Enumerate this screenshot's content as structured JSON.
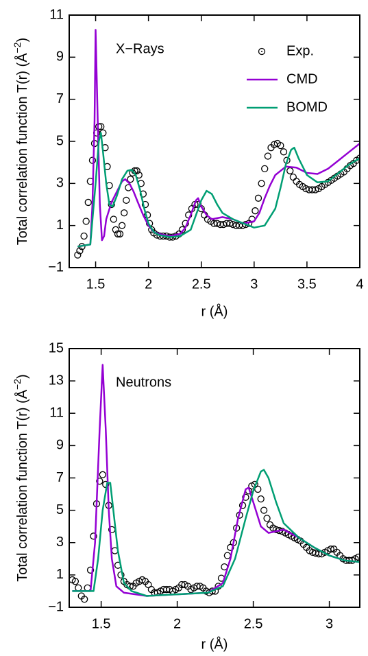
{
  "chart_data": [
    {
      "type": "scatter-line",
      "annotation": "X−Rays",
      "xlabel": "r (Å)",
      "ylabel": "Total correlation function T(r) (Å",
      "ylabel_sup": "−2",
      "ylabel_end": ")",
      "xlim": [
        1.25,
        4
      ],
      "xticks": [
        1.5,
        2,
        2.5,
        3,
        3.5,
        4
      ],
      "ylim": [
        -1,
        11
      ],
      "yticks": [
        {
          "value": -1,
          "label": "−1"
        },
        1,
        3,
        5,
        7,
        9,
        11
      ],
      "legend": "top-right",
      "series": [
        {
          "name": "Exp.",
          "color": "#000000",
          "style": "markers",
          "x": [
            1.33,
            1.35,
            1.37,
            1.39,
            1.41,
            1.43,
            1.45,
            1.47,
            1.49,
            1.51,
            1.53,
            1.55,
            1.57,
            1.59,
            1.61,
            1.63,
            1.65,
            1.67,
            1.69,
            1.71,
            1.73,
            1.75,
            1.77,
            1.79,
            1.81,
            1.83,
            1.85,
            1.87,
            1.89,
            1.91,
            1.93,
            1.95,
            1.97,
            1.99,
            2.01,
            2.03,
            2.05,
            2.08,
            2.11,
            2.14,
            2.17,
            2.2,
            2.23,
            2.26,
            2.29,
            2.32,
            2.35,
            2.38,
            2.41,
            2.44,
            2.47,
            2.5,
            2.53,
            2.56,
            2.59,
            2.62,
            2.65,
            2.68,
            2.71,
            2.74,
            2.77,
            2.8,
            2.83,
            2.86,
            2.89,
            2.92,
            2.95,
            2.98,
            3.01,
            3.04,
            3.07,
            3.1,
            3.13,
            3.16,
            3.19,
            3.22,
            3.25,
            3.28,
            3.31,
            3.34,
            3.37,
            3.4,
            3.43,
            3.46,
            3.49,
            3.52,
            3.55,
            3.58,
            3.61,
            3.64,
            3.67,
            3.7,
            3.73,
            3.76,
            3.79,
            3.82,
            3.85,
            3.88,
            3.91,
            3.94,
            3.97,
            4.0
          ],
          "values": [
            -0.4,
            -0.2,
            0.0,
            0.5,
            1.2,
            2.1,
            3.1,
            4.1,
            4.9,
            5.4,
            5.7,
            5.7,
            5.4,
            4.7,
            3.8,
            2.9,
            2.0,
            1.3,
            0.8,
            0.6,
            0.6,
            1.0,
            1.6,
            2.2,
            2.8,
            3.2,
            3.5,
            3.6,
            3.6,
            3.4,
            3.0,
            2.5,
            2.0,
            1.5,
            1.1,
            0.8,
            0.65,
            0.55,
            0.5,
            0.5,
            0.5,
            0.45,
            0.45,
            0.5,
            0.6,
            0.8,
            1.1,
            1.5,
            1.8,
            2.0,
            2.0,
            1.8,
            1.5,
            1.3,
            1.2,
            1.1,
            1.1,
            1.05,
            1.05,
            1.1,
            1.1,
            1.05,
            1.0,
            1.0,
            1.0,
            1.05,
            1.1,
            1.3,
            1.7,
            2.3,
            3.0,
            3.7,
            4.3,
            4.7,
            4.85,
            4.9,
            4.8,
            4.5,
            4.1,
            3.6,
            3.3,
            3.1,
            2.95,
            2.85,
            2.75,
            2.7,
            2.7,
            2.7,
            2.75,
            2.85,
            2.95,
            3.05,
            3.15,
            3.25,
            3.35,
            3.45,
            3.55,
            3.7,
            3.85,
            3.95,
            4.1,
            4.2
          ]
        },
        {
          "name": "CMD",
          "color": "#9400d3",
          "style": "line",
          "x": [
            1.33,
            1.45,
            1.47,
            1.49,
            1.5,
            1.52,
            1.54,
            1.56,
            1.58,
            1.6,
            1.65,
            1.7,
            1.75,
            1.78,
            1.82,
            1.86,
            1.9,
            1.95,
            2.0,
            2.05,
            2.1,
            2.2,
            2.3,
            2.35,
            2.4,
            2.45,
            2.47,
            2.5,
            2.55,
            2.6,
            2.7,
            2.8,
            2.9,
            3.0,
            3.05,
            3.1,
            3.15,
            3.2,
            3.3,
            3.4,
            3.5,
            3.6,
            3.7,
            3.8,
            3.9,
            4.0
          ],
          "values": [
            0.0,
            0.1,
            2,
            6,
            10.3,
            6,
            2,
            0.3,
            0.5,
            1.3,
            2.1,
            2.6,
            3.1,
            3.2,
            3.0,
            2.6,
            2.1,
            1.5,
            1.0,
            0.7,
            0.6,
            0.5,
            0.6,
            0.9,
            1.5,
            2.2,
            2.3,
            1.9,
            1.5,
            1.3,
            1.4,
            1.3,
            1.1,
            1.2,
            1.6,
            2.3,
            2.9,
            3.4,
            3.8,
            3.75,
            3.5,
            3.45,
            3.7,
            4.1,
            4.5,
            4.9
          ]
        },
        {
          "name": "BOMD",
          "color": "#009e73",
          "style": "line",
          "x": [
            1.33,
            1.45,
            1.5,
            1.53,
            1.55,
            1.57,
            1.6,
            1.63,
            1.66,
            1.7,
            1.75,
            1.8,
            1.84,
            1.88,
            1.92,
            1.96,
            2.0,
            2.05,
            2.1,
            2.2,
            2.3,
            2.4,
            2.45,
            2.5,
            2.55,
            2.6,
            2.65,
            2.7,
            2.8,
            2.9,
            3.0,
            3.1,
            3.2,
            3.25,
            3.3,
            3.35,
            3.38,
            3.42,
            3.5,
            3.6,
            3.7,
            3.8,
            3.9,
            4.0
          ],
          "values": [
            0.0,
            0.1,
            3,
            5.0,
            5.4,
            4.5,
            3.0,
            2.0,
            1.9,
            2.4,
            3.2,
            3.6,
            3.65,
            3.4,
            2.7,
            1.8,
            1.1,
            0.7,
            0.55,
            0.45,
            0.5,
            0.8,
            1.5,
            2.2,
            2.65,
            2.5,
            2.0,
            1.6,
            1.3,
            1.1,
            0.9,
            1.0,
            1.8,
            2.8,
            3.9,
            4.6,
            4.7,
            4.2,
            3.4,
            3.05,
            3.1,
            3.5,
            3.9,
            4.2
          ]
        }
      ]
    },
    {
      "type": "scatter-line",
      "annotation": "Neutrons",
      "xlabel": "r (Å)",
      "ylabel": "Total correlation function T(r) (Å",
      "ylabel_sup": "−2",
      "ylabel_end": ")",
      "xlim": [
        1.29,
        3.2
      ],
      "xticks": [
        1.5,
        2,
        2.5,
        3
      ],
      "ylim": [
        -1,
        15
      ],
      "yticks": [
        {
          "value": -1,
          "label": "−1"
        },
        1,
        3,
        5,
        7,
        9,
        11,
        13,
        15
      ],
      "series": [
        {
          "color": "#000000",
          "style": "markers",
          "x": [
            1.31,
            1.33,
            1.35,
            1.37,
            1.39,
            1.41,
            1.43,
            1.45,
            1.47,
            1.49,
            1.51,
            1.53,
            1.55,
            1.57,
            1.59,
            1.61,
            1.63,
            1.65,
            1.67,
            1.69,
            1.71,
            1.73,
            1.75,
            1.77,
            1.79,
            1.81,
            1.83,
            1.85,
            1.87,
            1.89,
            1.91,
            1.93,
            1.95,
            1.97,
            1.99,
            2.01,
            2.03,
            2.05,
            2.07,
            2.09,
            2.11,
            2.13,
            2.15,
            2.17,
            2.19,
            2.21,
            2.23,
            2.25,
            2.27,
            2.29,
            2.31,
            2.33,
            2.35,
            2.37,
            2.39,
            2.41,
            2.43,
            2.45,
            2.47,
            2.49,
            2.51,
            2.53,
            2.55,
            2.57,
            2.59,
            2.61,
            2.63,
            2.65,
            2.67,
            2.69,
            2.71,
            2.73,
            2.75,
            2.77,
            2.79,
            2.81,
            2.83,
            2.85,
            2.87,
            2.89,
            2.91,
            2.93,
            2.95,
            2.97,
            2.99,
            3.01,
            3.03,
            3.05,
            3.07,
            3.09,
            3.11,
            3.13,
            3.15,
            3.17,
            3.19
          ],
          "values": [
            0.7,
            0.6,
            0.2,
            -0.3,
            -0.5,
            0.2,
            1.3,
            3.4,
            5.4,
            6.8,
            7.2,
            6.6,
            5.3,
            3.8,
            2.5,
            1.6,
            1.0,
            0.6,
            0.4,
            0.3,
            0.3,
            0.5,
            0.6,
            0.7,
            0.6,
            0.4,
            0.1,
            -0.1,
            -0.1,
            0.0,
            0.1,
            0.1,
            0.1,
            0.0,
            0.1,
            0.2,
            0.4,
            0.4,
            0.3,
            0.1,
            0.2,
            0.3,
            0.3,
            0.2,
            0.0,
            -0.1,
            0.0,
            0.0,
            0.3,
            0.8,
            1.5,
            2.2,
            2.7,
            3.0,
            3.9,
            4.7,
            5.3,
            5.8,
            6.2,
            6.5,
            6.6,
            6.3,
            5.7,
            5.0,
            4.5,
            4.1,
            3.9,
            3.8,
            3.75,
            3.7,
            3.6,
            3.5,
            3.4,
            3.3,
            3.2,
            3.1,
            2.9,
            2.7,
            2.5,
            2.4,
            2.35,
            2.3,
            2.3,
            2.4,
            2.5,
            2.6,
            2.6,
            2.4,
            2.2,
            2.0,
            1.9,
            1.9,
            1.9,
            2.0,
            2.1
          ]
        },
        {
          "color": "#9400d3",
          "style": "line",
          "x": [
            1.31,
            1.43,
            1.46,
            1.49,
            1.51,
            1.53,
            1.55,
            1.57,
            1.6,
            1.65,
            1.8,
            2.0,
            2.2,
            2.3,
            2.35,
            2.4,
            2.45,
            2.47,
            2.5,
            2.55,
            2.6,
            2.7,
            2.8,
            2.9,
            3.0,
            3.1,
            3.2
          ],
          "values": [
            0,
            0,
            3,
            10,
            14,
            10,
            5,
            2,
            0.3,
            -0.1,
            -0.3,
            -0.2,
            -0.1,
            0.5,
            2,
            4.5,
            6.3,
            6.4,
            5.5,
            4.0,
            3.6,
            3.8,
            3.3,
            2.7,
            2.2,
            1.9,
            1.8
          ]
        },
        {
          "color": "#009e73",
          "style": "line",
          "x": [
            1.31,
            1.45,
            1.48,
            1.51,
            1.54,
            1.56,
            1.58,
            1.61,
            1.65,
            1.7,
            1.8,
            2.0,
            2.2,
            2.3,
            2.38,
            2.45,
            2.5,
            2.55,
            2.57,
            2.6,
            2.65,
            2.7,
            2.8,
            2.9,
            3.0,
            3.1,
            3.2
          ],
          "values": [
            0,
            0,
            2,
            5,
            6.7,
            6.7,
            5,
            2.5,
            0.5,
            0,
            -0.3,
            -0.2,
            -0.1,
            0.3,
            2,
            4.5,
            6.2,
            7.4,
            7.5,
            7.0,
            5.5,
            4.2,
            3.3,
            2.7,
            2.2,
            1.9,
            1.8
          ]
        }
      ]
    }
  ]
}
